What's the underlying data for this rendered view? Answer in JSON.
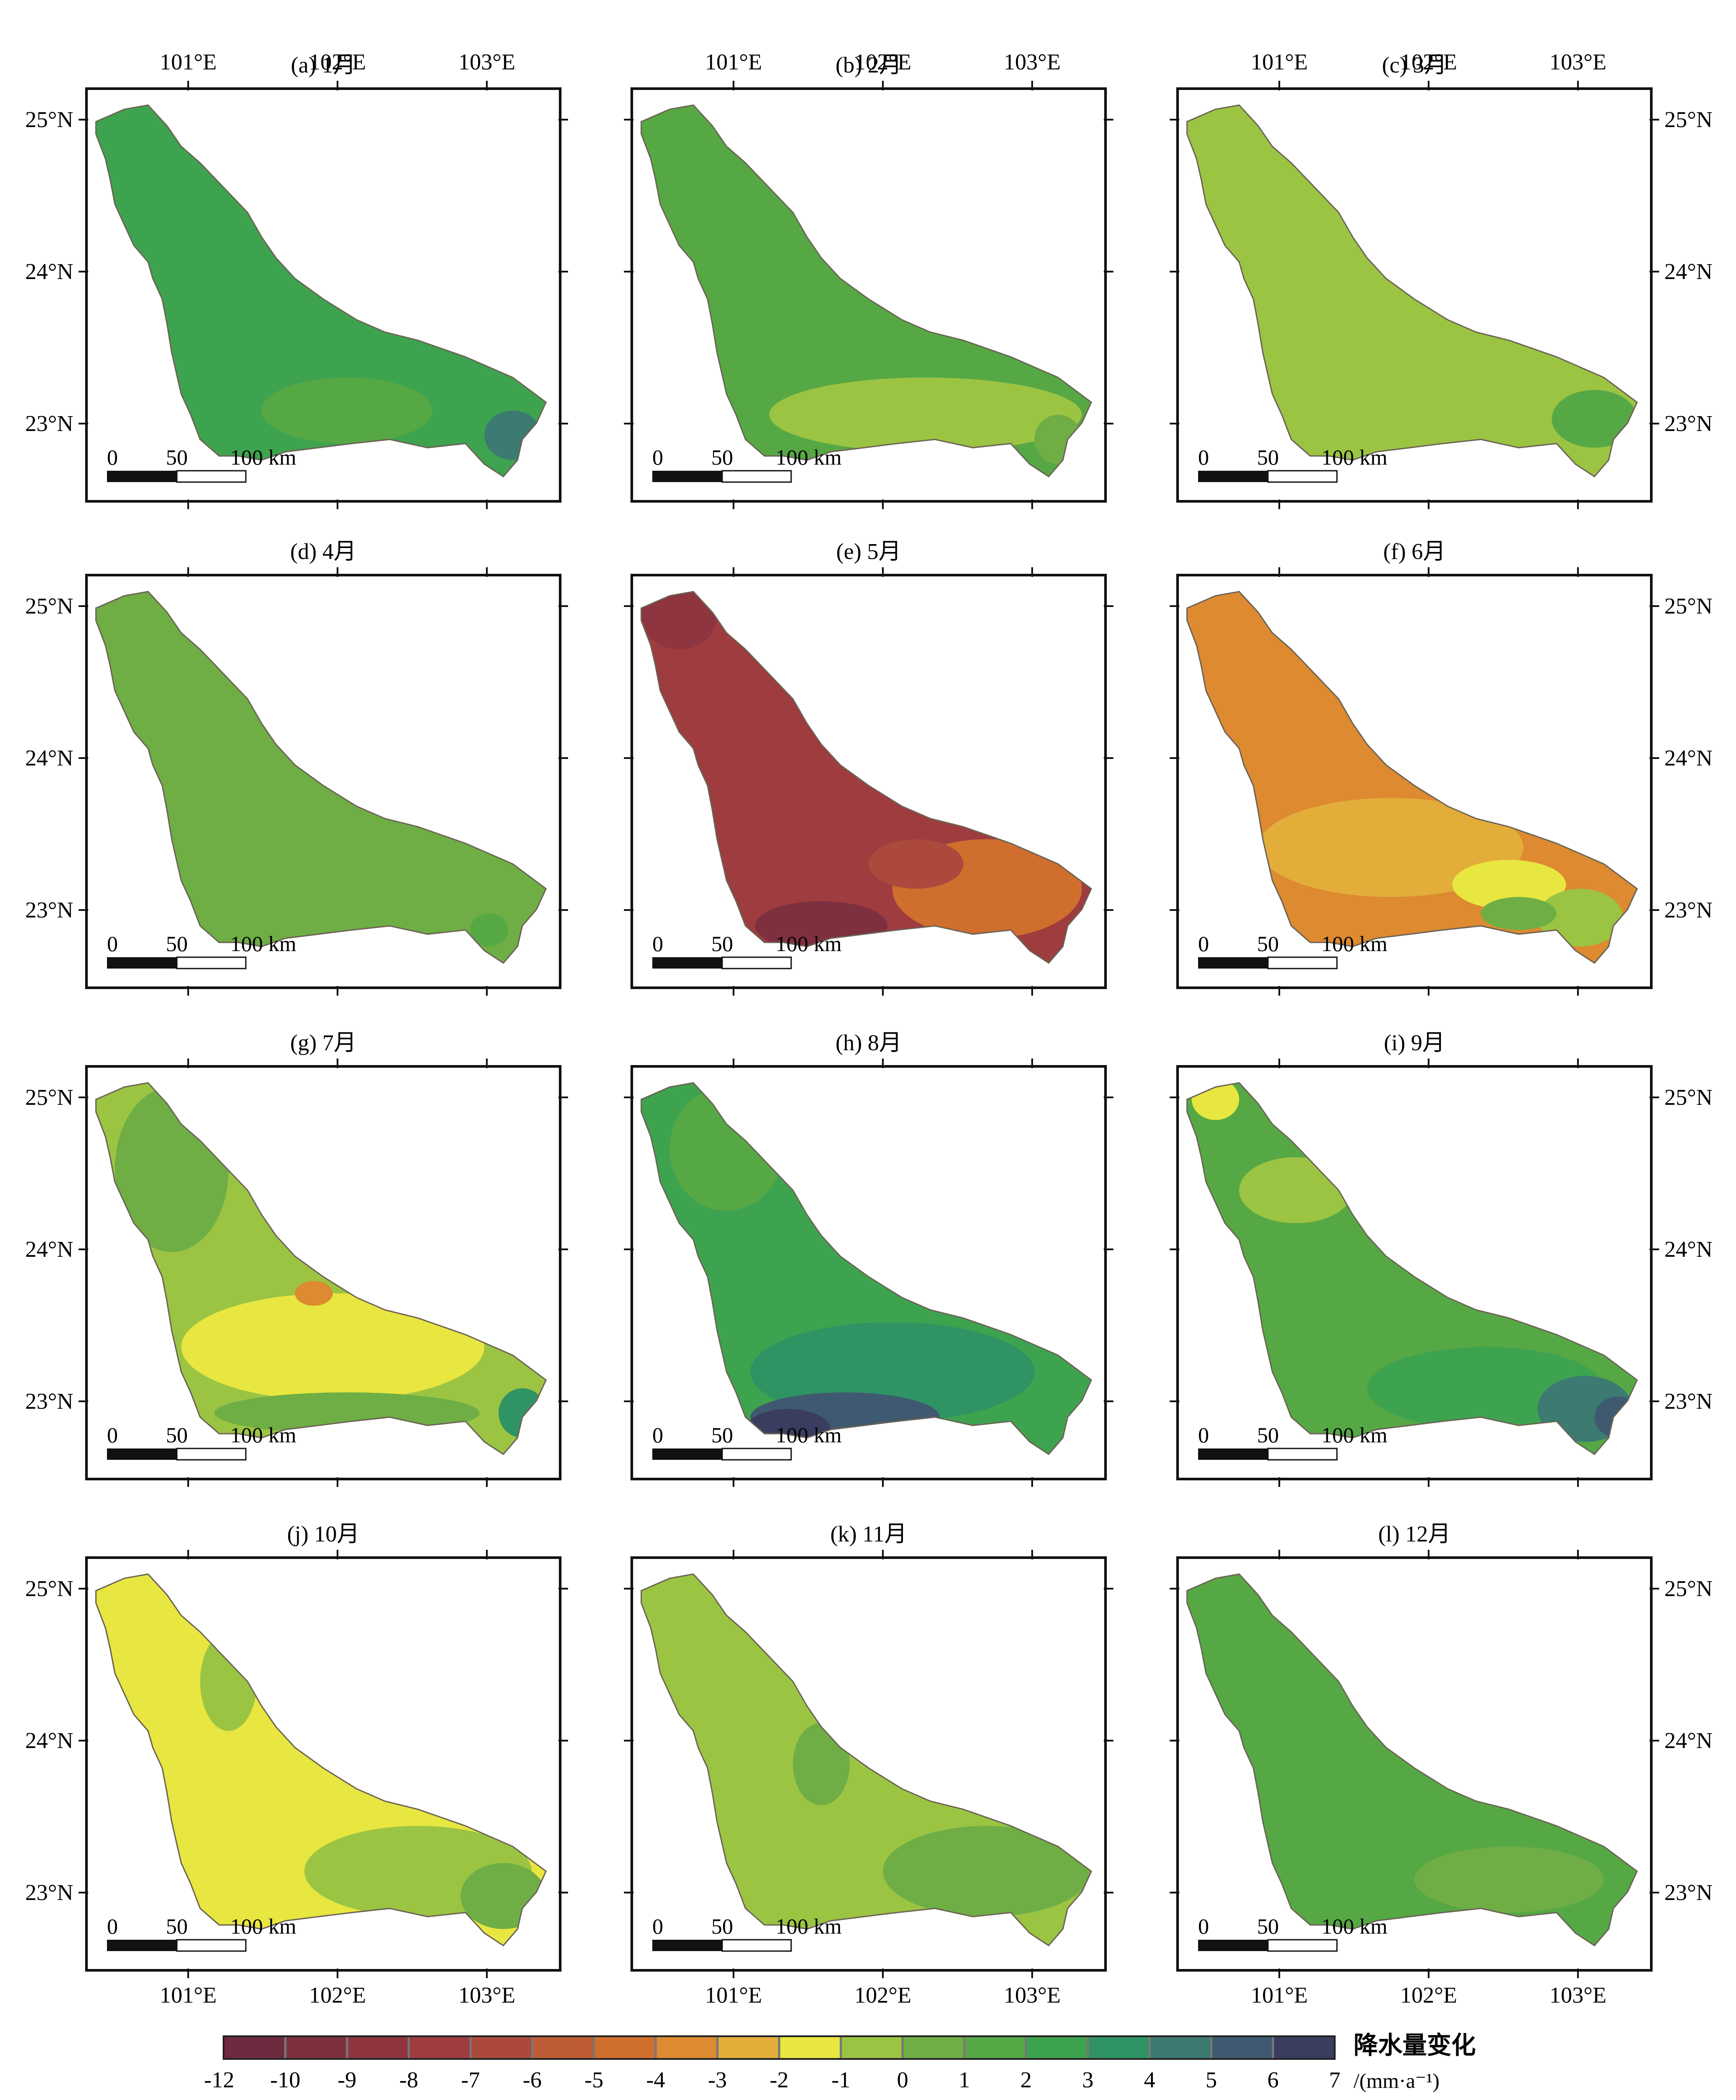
{
  "panels": [
    {
      "title": "(a) 1月"
    },
    {
      "title": "(b) 2月"
    },
    {
      "title": "(c) 3月"
    },
    {
      "title": "(d) 4月"
    },
    {
      "title": "(e) 5月"
    },
    {
      "title": "(f) 6月"
    },
    {
      "title": "(g) 7月"
    },
    {
      "title": "(h) 8月"
    },
    {
      "title": "(i) 9月"
    },
    {
      "title": "(j) 10月"
    },
    {
      "title": "(k) 11月"
    },
    {
      "title": "(l) 12月"
    }
  ],
  "axes": {
    "lon_ticks": [
      "101°E",
      "102°E",
      "103°E"
    ],
    "lat_ticks": [
      "25°N",
      "24°N",
      "23°N"
    ]
  },
  "scalebar": {
    "labels": [
      "0",
      "50",
      "100 km"
    ]
  },
  "colorbar": {
    "label": "降水量变化",
    "unit": "/(mm·a⁻¹)",
    "ticks": [
      "-12",
      "-10",
      "-9",
      "-8",
      "-7",
      "-6",
      "-5",
      "-4",
      "-3",
      "-2",
      "-1",
      "0",
      "1",
      "2",
      "3",
      "4",
      "5",
      "6",
      "7"
    ],
    "colors": [
      "#6e2a3e",
      "#7e303f",
      "#8e3540",
      "#9e3c40",
      "#ab4a3c",
      "#bd5c34",
      "#d06e2e",
      "#dd8a30",
      "#e3ad3a",
      "#e8e640",
      "#9bc443",
      "#6fae45",
      "#56a845",
      "#3ea34f",
      "#2f9363",
      "#3c7a72",
      "#3f5a70",
      "#3a3d60"
    ]
  },
  "chart_data": {
    "type": "choropleth-map",
    "variable": "降水量变化",
    "unit": "/(mm·a⁻¹)",
    "lon_ticks": [
      101,
      102,
      103
    ],
    "lat_ticks": [
      25,
      24,
      23
    ],
    "months": [
      {
        "panel": "(a) 1月",
        "dominant_class": "2~3",
        "notes": "eastern tip 3~4"
      },
      {
        "panel": "(b) 2月",
        "dominant_class": "1~2",
        "notes": "southern and middle parts 0~1"
      },
      {
        "panel": "(c) 3月",
        "dominant_class": "0~1",
        "notes": "eastern tip 1~2"
      },
      {
        "panel": "(d) 4月",
        "dominant_class": "1~2",
        "notes": ""
      },
      {
        "panel": "(e) 5月",
        "dominant_class": "-9~-8",
        "notes": "east -6~-5, south -12~-10"
      },
      {
        "panel": "(f) 6月",
        "dominant_class": "-4~-3",
        "notes": "east -2~-1 and 0~1"
      },
      {
        "panel": "(g) 7月",
        "dominant_class": "-2~-1",
        "notes": "north 1~2, south-east 2~4"
      },
      {
        "panel": "(h) 8月",
        "dominant_class": "2~3",
        "notes": "south-east 4~7"
      },
      {
        "panel": "(i) 9月",
        "dominant_class": "1~2",
        "notes": "east 4~6"
      },
      {
        "panel": "(j) 10月",
        "dominant_class": "-2~-1",
        "notes": "east 0~1"
      },
      {
        "panel": "(k) 11月",
        "dominant_class": "0~1",
        "notes": "east 1~2"
      },
      {
        "panel": "(l) 12月",
        "dominant_class": "1~2",
        "notes": ""
      }
    ]
  }
}
